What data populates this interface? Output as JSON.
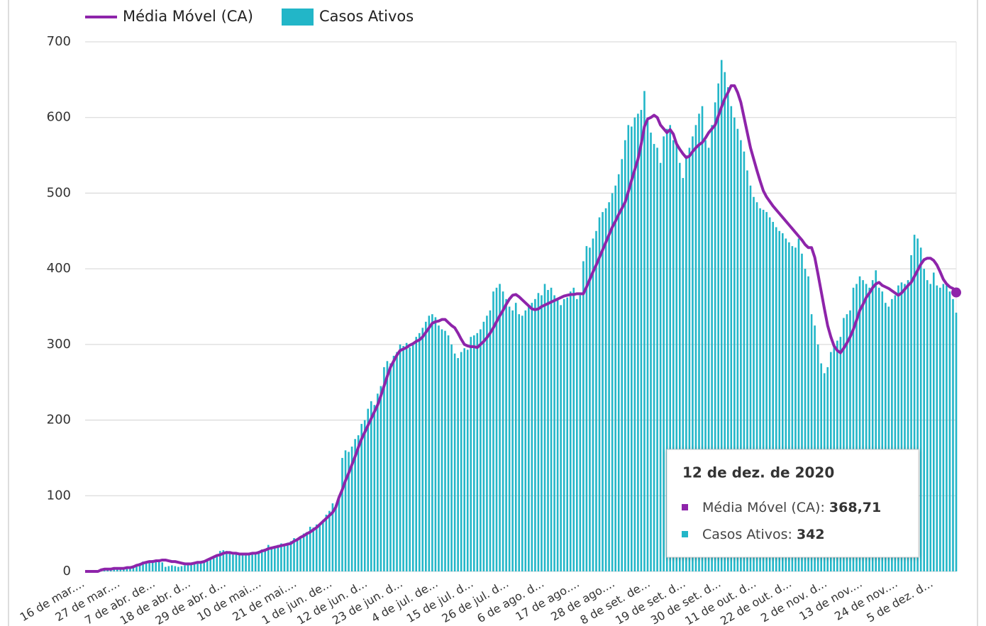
{
  "chart_data": {
    "type": "bar-line",
    "categories": [
      "16 de mar....",
      null,
      null,
      null,
      null,
      null,
      null,
      null,
      null,
      null,
      null,
      "27 de mar....",
      null,
      null,
      null,
      null,
      null,
      null,
      null,
      null,
      null,
      null,
      "7 de abr. de...",
      null,
      null,
      null,
      null,
      null,
      null,
      null,
      null,
      null,
      null,
      "18 de abr. d...",
      null,
      null,
      null,
      null,
      null,
      null,
      null,
      null,
      null,
      null,
      "29 de abr. d...",
      null,
      null,
      null,
      null,
      null,
      null,
      null,
      null,
      null,
      null,
      "10 de mai....",
      null,
      null,
      null,
      null,
      null,
      null,
      null,
      null,
      null,
      null,
      "21 de mai....",
      null,
      null,
      null,
      null,
      null,
      null,
      null,
      null,
      null,
      null,
      "1 de jun. de...",
      null,
      null,
      null,
      null,
      null,
      null,
      null,
      null,
      null,
      null,
      "12 de jun. d...",
      null,
      null,
      null,
      null,
      null,
      null,
      null,
      null,
      null,
      null,
      "23 de jun. d...",
      null,
      null,
      null,
      null,
      null,
      null,
      null,
      null,
      null,
      null,
      "4 de jul. de...",
      null,
      null,
      null,
      null,
      null,
      null,
      null,
      null,
      null,
      null,
      "15 de jul. d...",
      null,
      null,
      null,
      null,
      null,
      null,
      null,
      null,
      null,
      null,
      "26 de jul. d...",
      null,
      null,
      null,
      null,
      null,
      null,
      null,
      null,
      null,
      null,
      "6 de ago. d...",
      null,
      null,
      null,
      null,
      null,
      null,
      null,
      null,
      null,
      null,
      "17 de ago....",
      null,
      null,
      null,
      null,
      null,
      null,
      null,
      null,
      null,
      null,
      "28 de ago....",
      null,
      null,
      null,
      null,
      null,
      null,
      null,
      null,
      null,
      null,
      "8 de set. de...",
      null,
      null,
      null,
      null,
      null,
      null,
      null,
      null,
      null,
      null,
      "19 de set. d...",
      null,
      null,
      null,
      null,
      null,
      null,
      null,
      null,
      null,
      null,
      "30 de set. d...",
      null,
      null,
      null,
      null,
      null,
      null,
      null,
      null,
      null,
      null,
      "11 de out. d...",
      null,
      null,
      null,
      null,
      null,
      null,
      null,
      null,
      null,
      null,
      "22 de out. d...",
      null,
      null,
      null,
      null,
      null,
      null,
      null,
      null,
      null,
      null,
      "2 de nov. d...",
      null,
      null,
      null,
      null,
      null,
      null,
      null,
      null,
      null,
      null,
      "13 de nov....",
      null,
      null,
      null,
      null,
      null,
      null,
      null,
      null,
      null,
      null,
      "24 de nov....",
      null,
      null,
      null,
      null,
      null,
      null,
      null,
      null,
      null,
      null,
      "5 de dez. d...",
      null,
      null,
      null,
      null,
      null,
      null,
      null
    ],
    "series": [
      {
        "name": "Média Móvel (CA)",
        "type": "line",
        "color": "#8e24aa",
        "values": [
          0,
          0,
          0,
          0,
          0,
          2,
          3,
          3,
          3,
          4,
          4,
          4,
          4,
          5,
          5,
          6,
          8,
          9,
          11,
          12,
          13,
          13,
          14,
          14,
          15,
          15,
          14,
          13,
          13,
          12,
          11,
          10,
          10,
          10,
          11,
          12,
          12,
          13,
          15,
          17,
          19,
          21,
          22,
          24,
          25,
          25,
          24,
          24,
          23,
          23,
          23,
          23,
          24,
          24,
          25,
          27,
          28,
          30,
          31,
          32,
          33,
          34,
          35,
          36,
          37,
          40,
          42,
          45,
          47,
          50,
          52,
          55,
          58,
          62,
          66,
          70,
          74,
          78,
          85,
          98,
          108,
          120,
          130,
          141,
          152,
          164,
          175,
          184,
          193,
          202,
          211,
          220,
          232,
          245,
          258,
          270,
          278,
          286,
          292,
          294,
          296,
          299,
          301,
          304,
          306,
          310,
          316,
          322,
          328,
          330,
          331,
          333,
          333,
          329,
          325,
          322,
          315,
          307,
          300,
          298,
          297,
          297,
          296,
          300,
          304,
          309,
          315,
          322,
          330,
          338,
          345,
          353,
          360,
          365,
          366,
          363,
          359,
          355,
          351,
          347,
          346,
          347,
          350,
          352,
          354,
          356,
          358,
          360,
          362,
          364,
          365,
          366,
          366,
          367,
          367,
          367,
          376,
          386,
          396,
          405,
          415,
          425,
          435,
          445,
          455,
          463,
          472,
          480,
          488,
          502,
          517,
          531,
          545,
          565,
          588,
          598,
          600,
          603,
          600,
          590,
          585,
          580,
          584,
          578,
          565,
          558,
          552,
          547,
          549,
          555,
          560,
          564,
          567,
          573,
          580,
          585,
          590,
          602,
          614,
          625,
          633,
          642,
          642,
          633,
          620,
          600,
          580,
          560,
          545,
          530,
          516,
          503,
          495,
          489,
          483,
          478,
          473,
          468,
          463,
          458,
          453,
          448,
          443,
          438,
          432,
          428,
          428,
          415,
          393,
          370,
          347,
          325,
          310,
          298,
          292,
          289,
          295,
          302,
          310,
          320,
          332,
          345,
          353,
          362,
          368,
          375,
          380,
          382,
          378,
          376,
          374,
          371,
          368,
          365,
          368,
          373,
          378,
          382,
          390,
          398,
          406,
          412,
          414,
          414,
          411,
          405,
          396,
          386,
          380,
          376,
          374,
          368.71
        ]
      },
      {
        "name": "Casos Ativos",
        "type": "bar",
        "color": "#22b6c8",
        "values": [
          0,
          0,
          0,
          0,
          1,
          2,
          3,
          3,
          4,
          4,
          4,
          5,
          5,
          5,
          6,
          8,
          9,
          11,
          13,
          12,
          14,
          15,
          14,
          16,
          12,
          6,
          7,
          8,
          7,
          6,
          7,
          8,
          9,
          10,
          12,
          13,
          12,
          14,
          16,
          18,
          20,
          21,
          27,
          28,
          27,
          24,
          22,
          23,
          24,
          24,
          22,
          23,
          24,
          25,
          27,
          29,
          30,
          35,
          32,
          33,
          35,
          37,
          36,
          38,
          40,
          44,
          43,
          46,
          50,
          52,
          59,
          58,
          62,
          63,
          68,
          75,
          80,
          90,
          88,
          100,
          150,
          160,
          158,
          165,
          175,
          180,
          195,
          200,
          215,
          225,
          220,
          235,
          245,
          270,
          278,
          275,
          285,
          290,
          300,
          298,
          302,
          296,
          300,
          310,
          315,
          322,
          330,
          338,
          340,
          336,
          325,
          320,
          318,
          312,
          300,
          288,
          282,
          290,
          295,
          293,
          310,
          312,
          315,
          320,
          330,
          338,
          345,
          370,
          375,
          380,
          370,
          360,
          350,
          345,
          355,
          340,
          338,
          345,
          350,
          355,
          360,
          368,
          365,
          380,
          372,
          375,
          365,
          360,
          352,
          360,
          362,
          370,
          375,
          360,
          365,
          410,
          430,
          428,
          440,
          450,
          468,
          475,
          480,
          488,
          500,
          510,
          525,
          545,
          570,
          590,
          588,
          600,
          605,
          610,
          635,
          600,
          580,
          565,
          560,
          540,
          575,
          585,
          590,
          570,
          565,
          540,
          520,
          550,
          560,
          575,
          590,
          605,
          615,
          570,
          560,
          590,
          620,
          645,
          676,
          660,
          640,
          615,
          600,
          585,
          570,
          555,
          530,
          510,
          495,
          488,
          480,
          478,
          475,
          468,
          462,
          455,
          450,
          447,
          440,
          435,
          430,
          428,
          440,
          420,
          400,
          390,
          340,
          325,
          300,
          275,
          262,
          270,
          290,
          300,
          305,
          310,
          335,
          340,
          345,
          375,
          380,
          390,
          385,
          380,
          375,
          385,
          398,
          375,
          370,
          355,
          350,
          360,
          365,
          378,
          382,
          380,
          385,
          418,
          445,
          440,
          428,
          400,
          385,
          380,
          395,
          378,
          375,
          380,
          378,
          370,
          360,
          342
        ]
      }
    ],
    "ylim": [
      0,
      700
    ],
    "yticks": [
      0,
      100,
      200,
      300,
      400,
      500,
      600,
      700
    ],
    "grid": true,
    "legend": "top-left",
    "tooltip": {
      "title": "12 de dez. de 2020",
      "items": [
        {
          "label": "Média Móvel (CA):",
          "value": "368,71"
        },
        {
          "label": "Casos Ativos:",
          "value": "342"
        }
      ]
    }
  }
}
